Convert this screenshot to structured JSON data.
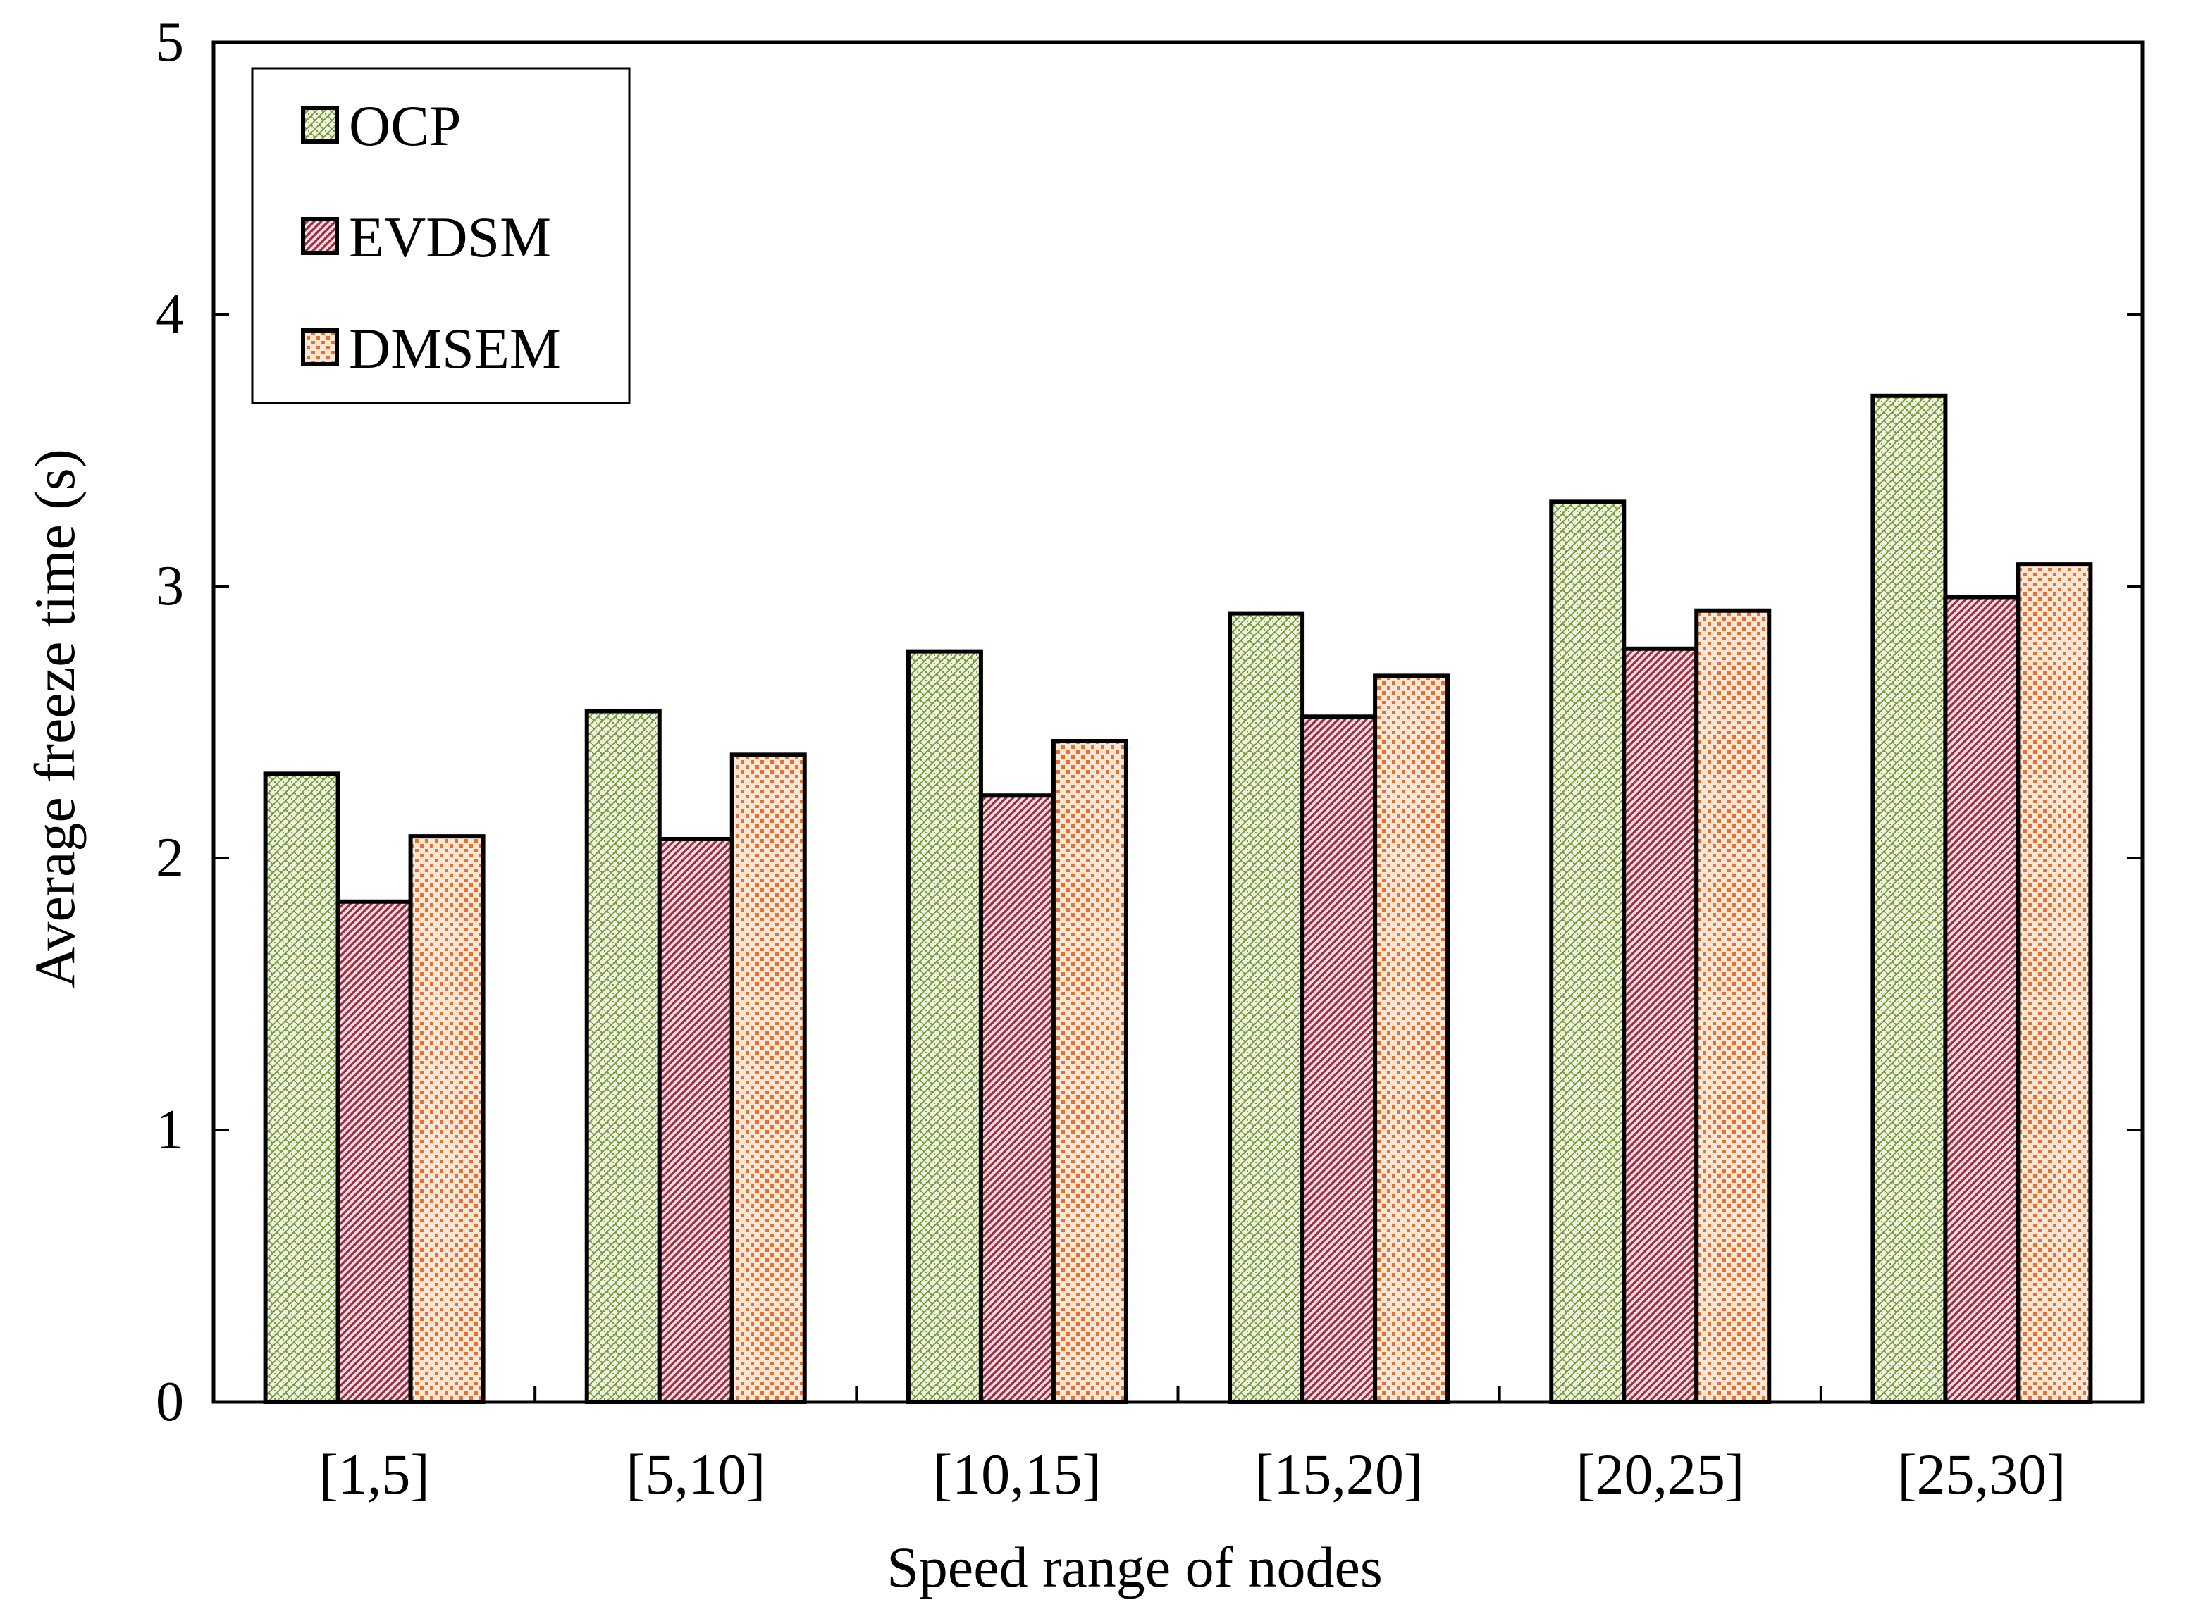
{
  "chart_data": {
    "type": "bar",
    "title": "",
    "xlabel": "Speed range of nodes",
    "ylabel": "Average freeze time (s)",
    "ylim": [
      0,
      5
    ],
    "yticks": [
      "0",
      "1",
      "2",
      "3",
      "4",
      "5"
    ],
    "categories": [
      "[1,5]",
      "[5,10]",
      "[10,15]",
      "[15,20]",
      "[20,25]",
      "[25,30]"
    ],
    "series": [
      {
        "name": "OCP",
        "values": [
          2.31,
          2.54,
          2.76,
          2.9,
          3.31,
          3.7
        ],
        "color": "#7a9a3a",
        "pattern": "weave"
      },
      {
        "name": "EVDSM",
        "values": [
          1.84,
          2.07,
          2.23,
          2.52,
          2.77,
          2.96
        ],
        "color": "#9e2a40",
        "pattern": "diagonal"
      },
      {
        "name": "DMSEM",
        "values": [
          2.08,
          2.38,
          2.43,
          2.67,
          2.91,
          3.08
        ],
        "color": "#e8702a",
        "pattern": "checker"
      }
    ],
    "grid": false,
    "legend_position": "top-left"
  }
}
